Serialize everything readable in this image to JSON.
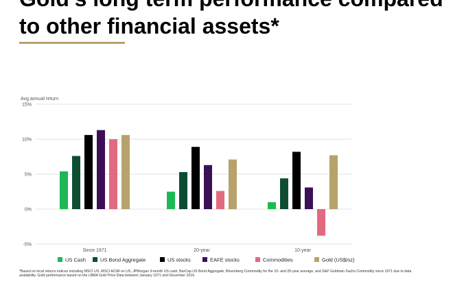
{
  "header": {
    "title_line1": "Gold’s long term performance compared",
    "title_line2": "to other financial assets*",
    "rule_color": "#b7a26b"
  },
  "footnote": "*Based on local returns indices including MSCI US, MSCI ACWI ex US, JPMorgan 3-month US cash, BarCap US Bond Aggregate, Bloomberg Commodity for the 10- and 20-year average, and S&P Goldman Sachs Commodity since 1971 due to data availability. Gold performance based on the LBMA Gold Price Data between January 1971 and December 2016.",
  "chart_data": {
    "type": "bar",
    "ylabel": "Avg.annual return",
    "ylim": [
      -5,
      15
    ],
    "yticks": [
      15,
      10,
      5,
      0,
      -5
    ],
    "ytick_labels": [
      "15%",
      "10%",
      "5%",
      "0%",
      "-5%"
    ],
    "categories": [
      "Since 1971",
      "20-year",
      "10-year"
    ],
    "grid": true,
    "legend_position": "bottom",
    "series": [
      {
        "name": "US Cash",
        "color": "#1db954",
        "values": [
          5.4,
          2.5,
          1.0
        ]
      },
      {
        "name": "US Bond Aggregate",
        "color": "#0f4d33",
        "values": [
          7.6,
          5.3,
          4.4
        ]
      },
      {
        "name": "US stocks",
        "color": "#000000",
        "values": [
          10.6,
          8.9,
          8.2
        ]
      },
      {
        "name": "EAFE stocks",
        "color": "#3d0f57",
        "values": [
          11.3,
          6.3,
          3.1
        ]
      },
      {
        "name": "Commodities",
        "color": "#e26a80",
        "values": [
          10.0,
          2.6,
          -3.8
        ]
      },
      {
        "name": "Gold (US$/oz)",
        "color": "#b7a26b",
        "values": [
          10.6,
          7.1,
          7.7
        ]
      }
    ]
  }
}
